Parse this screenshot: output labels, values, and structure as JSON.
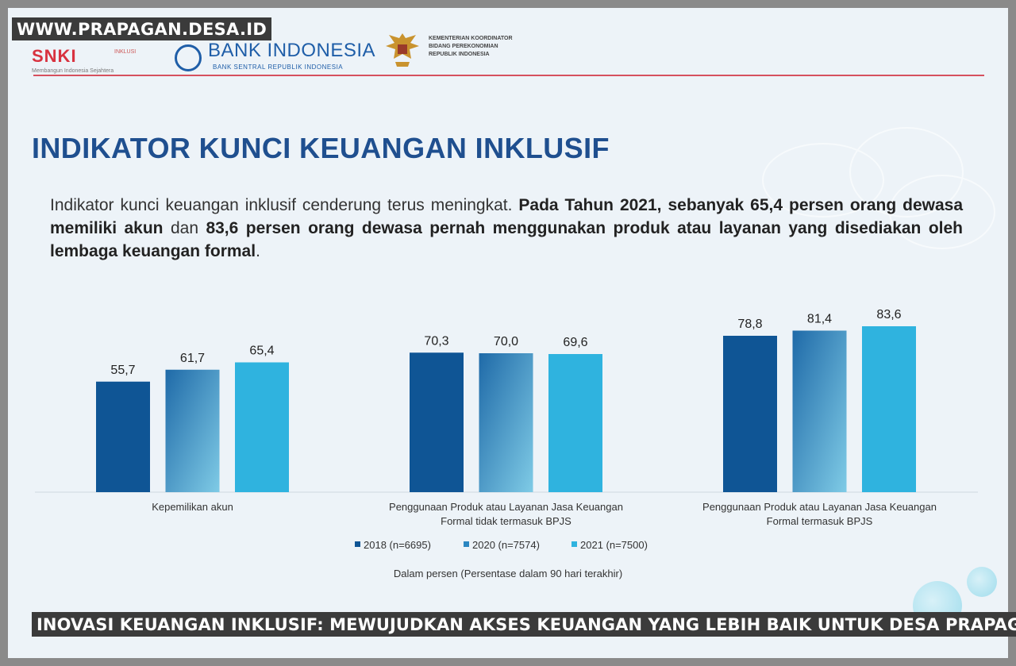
{
  "watermark": "WWW.PRAPAGAN.DESA.ID",
  "header": {
    "logo_snki": {
      "brand": "SNKI",
      "tag": "INKLUSI",
      "subtitle": "Membangun Indonesia Sejahtera"
    },
    "logo_bi": {
      "name": "BANK INDONESIA",
      "subtitle": "BANK SENTRAL REPUBLIK INDONESIA"
    },
    "logo_kemenko": [
      "KEMENTERIAN KOORDINATOR",
      "BIDANG PEREKONOMIAN",
      "REPUBLIK INDONESIA"
    ]
  },
  "slide_title": "INDIKATOR KUNCI KEUANGAN INKLUSIF",
  "description": {
    "normal": "Indikator kunci keuangan inklusif cenderung terus meningkat. ",
    "bold_1": "Pada Tahun 2021, sebanyak 65,4 persen orang dewasa memiliki akun",
    "normal_2": " dan ",
    "bold_2": "83,6 persen orang dewasa pernah menggunakan produk atau layanan yang disediakan oleh lembaga keuangan formal",
    "end": "."
  },
  "chart_data": {
    "type": "bar",
    "categories": [
      [
        "Kepemilikan akun"
      ],
      [
        "Penggunaan Produk atau Layanan Jasa Keuangan",
        "Formal tidak termasuk BPJS"
      ],
      [
        "Penggunaan Produk atau Layanan Jasa Keuangan",
        "Formal termasuk BPJS"
      ]
    ],
    "series": [
      {
        "name": "2018 (n=6695)",
        "values": [
          55.7,
          70.3,
          78.8
        ],
        "labels": [
          "55,7",
          "70,3",
          "78,8"
        ],
        "color": "#0f5595"
      },
      {
        "name": "2020 (n=7574)",
        "values": [
          61.7,
          70.0,
          81.4
        ],
        "labels": [
          "61,7",
          "70,0",
          "81,4"
        ],
        "color": "#2b86c1"
      },
      {
        "name": "2021 (n=7500)",
        "values": [
          65.4,
          69.6,
          83.6
        ],
        "labels": [
          "65,4",
          "69,6",
          "83,6"
        ],
        "color": "#2fb3df"
      }
    ],
    "ylim": [
      0,
      100
    ],
    "note": "Dalam persen (Persentase dalam 90 hari terakhir)",
    "legend_position": "bottom"
  },
  "caption": "INOVASI KEUANGAN INKLUSIF: MEWUJUDKAN AKSES KEUANGAN YANG LEBIH BAIK UNTUK DESA PRAPAGAN"
}
